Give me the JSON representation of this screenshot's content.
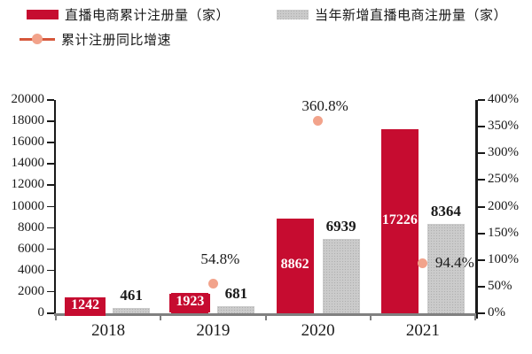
{
  "legend": {
    "series1": "直播电商累计注册量（家）",
    "series2": "当年新增直播电商注册量（家）",
    "series3": "累计注册同比增速"
  },
  "colors": {
    "red": "#C60C30",
    "gray": "#CBCBCB",
    "gray_texture": "#AFAFAF",
    "salmon": "#F2A38B",
    "legend_line": "#D6573B",
    "axis": "#1a1a1a",
    "baseline": "#808080",
    "text": "#1a1a1a",
    "bar_label_on_red": "#ffffff"
  },
  "chart_data": {
    "type": "bar",
    "title": "",
    "categories": [
      "2018",
      "2019",
      "2020",
      "2021"
    ],
    "series": [
      {
        "name": "直播电商累计注册量（家）",
        "role": "cumulative",
        "color_key": "red",
        "values": [
          1242,
          1923,
          8862,
          17226
        ]
      },
      {
        "name": "当年新增直播电商注册量（家）",
        "role": "new-registrations",
        "color_key": "gray",
        "values": [
          461,
          681,
          6939,
          8364
        ]
      }
    ],
    "growth_series": {
      "name": "累计注册同比增速",
      "type": "scatter",
      "points": [
        {
          "category": "2019",
          "value": 54.8,
          "label": "54.8%",
          "label_pos": "above",
          "gap": 20
        },
        {
          "category": "2020",
          "value": 360.8,
          "label": "360.8%",
          "label_pos": "above",
          "gap": 9
        },
        {
          "category": "2021",
          "value": 94.4,
          "label": "94.4%",
          "label_pos": "right",
          "gap": 14
        }
      ]
    },
    "left_axis": {
      "ticks": [
        0,
        2000,
        4000,
        6000,
        8000,
        10000,
        12000,
        14000,
        16000,
        18000,
        20000
      ],
      "max": 20000,
      "suffix": ""
    },
    "right_axis": {
      "ticks": [
        0,
        50,
        100,
        150,
        200,
        250,
        300,
        350,
        400
      ],
      "max": 400,
      "suffix": "%"
    },
    "xlabel": "",
    "ylabel": "",
    "grid": false,
    "legend_position": "top-left"
  }
}
